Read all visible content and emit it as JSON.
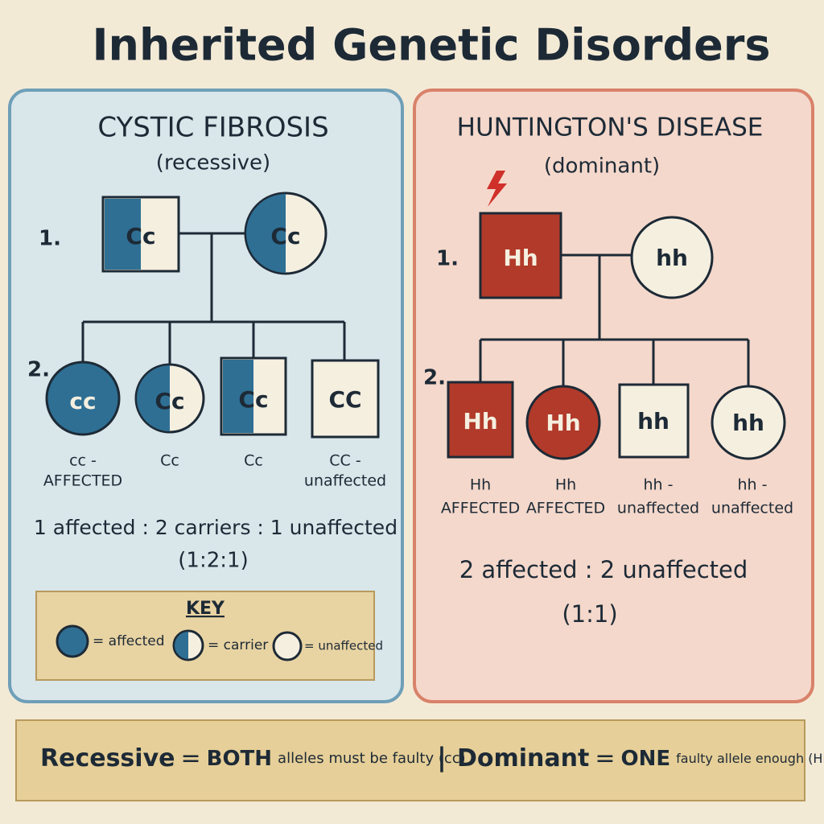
{
  "title": "Inherited Genetic Disorders",
  "recessive_panel": {
    "title": "CYSTIC FIBROSIS",
    "subtitle": "(recessive)",
    "generation_labels": [
      "1.",
      "2."
    ],
    "parents": [
      "Cc",
      "Cc"
    ],
    "children": [
      {
        "genotype": "cc",
        "caption": [
          "cc -",
          "AFFECTED"
        ]
      },
      {
        "genotype": "Cc",
        "caption": [
          "Cc"
        ]
      },
      {
        "genotype": "Cc",
        "caption": [
          "Cc"
        ]
      },
      {
        "genotype": "CC",
        "caption": [
          "CC -",
          "unaffected"
        ]
      }
    ],
    "ratio": "1 affected : 2 carriers : 1 unaffected",
    "ratio_numeric": "(1:2:1)",
    "key": {
      "title": "KEY",
      "items": [
        "= affected",
        "= carrier",
        "= unaffected"
      ]
    }
  },
  "dominant_panel": {
    "title": "HUNTINGTON'S DISEASE",
    "subtitle": "(dominant)",
    "generation_labels": [
      "1.",
      "2."
    ],
    "parents": [
      "Hh",
      "hh"
    ],
    "children": [
      {
        "genotype": "Hh",
        "caption": [
          "Hh",
          "AFFECTED"
        ]
      },
      {
        "genotype": "Hh",
        "caption": [
          "Hh",
          "AFFECTED"
        ]
      },
      {
        "genotype": "hh",
        "caption": [
          "hh -",
          "unaffected"
        ]
      },
      {
        "genotype": "hh",
        "caption": [
          "hh -",
          "unaffected"
        ]
      }
    ],
    "ratio": "2 affected : 2 unaffected",
    "ratio_numeric": "(1:1)"
  },
  "footer": {
    "recessive": {
      "term": "Recessive",
      "equals": "=",
      "emphasis": "BOTH",
      "rest": "alleles must be faulty (cc)"
    },
    "separator": "|",
    "dominant": {
      "term": "Dominant",
      "equals": "=",
      "emphasis": "ONE",
      "rest": "faulty allele enough (Hh)"
    }
  }
}
